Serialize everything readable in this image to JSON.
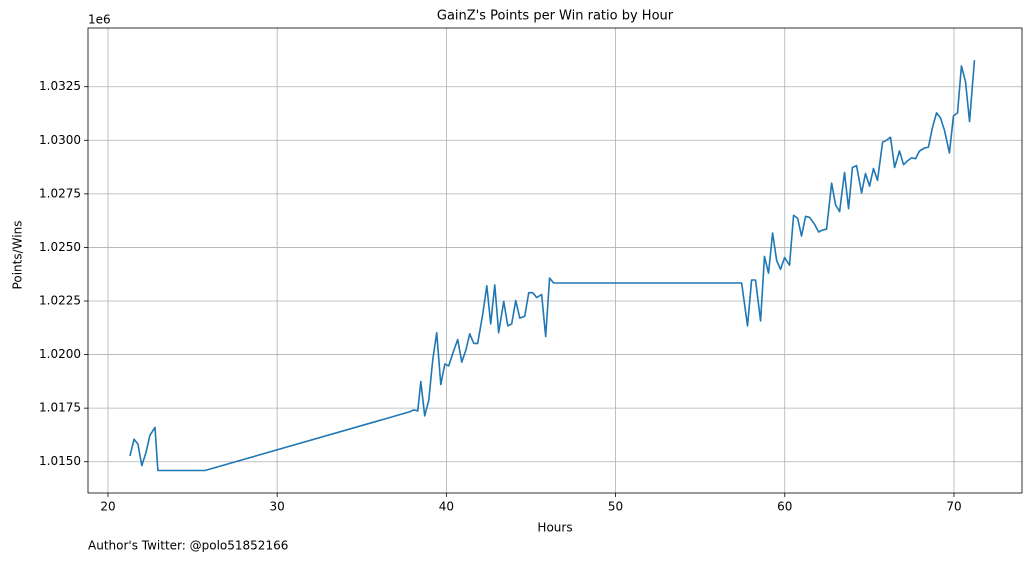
{
  "chart_data": {
    "type": "line",
    "title": "GainZ's Points per Win ratio by Hour",
    "xlabel": "Hours",
    "ylabel": "Points/Wins",
    "y_offset_label": "1e6",
    "annotation": "Author's Twitter: @polo51852166",
    "color": "#1f77b4",
    "grid": true,
    "xlim": [
      18.82,
      74.02
    ],
    "ylim": [
      1.01354,
      1.03524
    ],
    "xticks": [
      20,
      30,
      40,
      50,
      60,
      70
    ],
    "yticks": [
      {
        "value": 1.015,
        "label": "1.0150"
      },
      {
        "value": 1.0175,
        "label": "1.0175"
      },
      {
        "value": 1.02,
        "label": "1.0200"
      },
      {
        "value": 1.0225,
        "label": "1.0225"
      },
      {
        "value": 1.025,
        "label": "1.0250"
      },
      {
        "value": 1.0275,
        "label": "1.0275"
      },
      {
        "value": 1.03,
        "label": "1.0300"
      },
      {
        "value": 1.0325,
        "label": "1.0325"
      }
    ],
    "x": [
      21.3,
      21.54,
      21.77,
      22.0,
      22.24,
      22.48,
      22.78,
      22.95,
      25.73,
      37.84,
      38.07,
      38.31,
      38.49,
      38.72,
      38.96,
      39.2,
      39.43,
      39.67,
      39.91,
      40.14,
      40.38,
      40.67,
      40.91,
      41.15,
      41.38,
      41.62,
      41.85,
      42.15,
      42.39,
      42.62,
      42.86,
      43.09,
      43.39,
      43.63,
      43.86,
      44.1,
      44.34,
      44.63,
      44.87,
      45.1,
      45.34,
      45.63,
      45.87,
      46.1,
      46.34,
      57.45,
      57.8,
      58.04,
      58.27,
      58.57,
      58.8,
      59.04,
      59.28,
      59.52,
      59.75,
      59.99,
      60.28,
      60.52,
      60.76,
      60.99,
      61.23,
      61.47,
      61.76,
      62.0,
      62.23,
      62.47,
      62.77,
      63.0,
      63.24,
      63.53,
      63.77,
      64.0,
      64.24,
      64.54,
      64.77,
      65.01,
      65.24,
      65.48,
      65.78,
      66.01,
      66.25,
      66.49,
      66.78,
      67.02,
      67.25,
      67.49,
      67.73,
      67.96,
      68.26,
      68.49,
      68.73,
      68.97,
      69.2,
      69.44,
      69.73,
      69.97,
      70.21,
      70.44,
      70.68,
      70.92,
      71.21
    ],
    "values": [
      1.01527,
      1.01605,
      1.01582,
      1.01482,
      1.01541,
      1.01623,
      1.0166,
      1.01459,
      1.01459,
      1.01733,
      1.01742,
      1.01737,
      1.01874,
      1.01714,
      1.01787,
      1.01979,
      1.02102,
      1.0186,
      1.01956,
      1.01947,
      1.02006,
      1.0207,
      1.01965,
      1.0202,
      1.02097,
      1.02052,
      1.02052,
      1.02189,
      1.02321,
      1.02143,
      1.02325,
      1.02102,
      1.02248,
      1.02134,
      1.02143,
      1.02252,
      1.0217,
      1.02179,
      1.02289,
      1.02289,
      1.02266,
      1.0228,
      1.02084,
      1.02357,
      1.02334,
      1.02334,
      1.02134,
      1.02348,
      1.02348,
      1.02157,
      1.02458,
      1.0238,
      1.02567,
      1.02439,
      1.02398,
      1.02453,
      1.02417,
      1.0265,
      1.02636,
      1.02553,
      1.02645,
      1.0264,
      1.02608,
      1.02572,
      1.02581,
      1.02585,
      1.028,
      1.02699,
      1.02667,
      1.0285,
      1.02681,
      1.02873,
      1.02882,
      1.02754,
      1.02845,
      1.02786,
      1.02868,
      1.02813,
      1.02991,
      1.03,
      1.03014,
      1.02873,
      1.0295,
      1.02886,
      1.02904,
      1.02918,
      1.02914,
      1.0295,
      1.02964,
      1.02968,
      1.0306,
      1.03128,
      1.03105,
      1.03046,
      1.02941,
      1.03114,
      1.03128,
      1.03347,
      1.03274,
      1.03087,
      1.03374
    ]
  }
}
